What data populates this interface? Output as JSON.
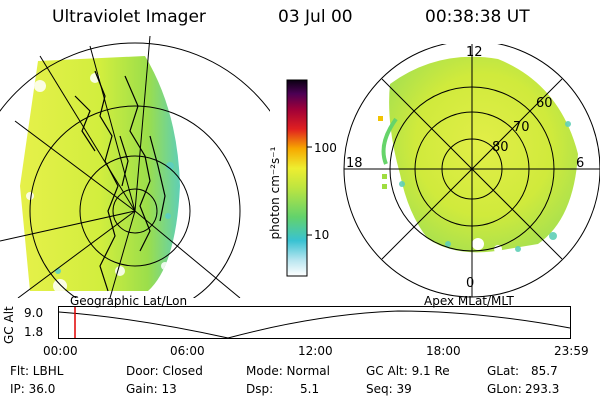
{
  "header": {
    "title": "Ultraviolet Imager",
    "date": "03 Jul 00",
    "time": "00:38:38 UT"
  },
  "colorbar": {
    "unit_label": "photon cm⁻²s⁻¹",
    "ticks": [
      "100",
      "10"
    ]
  },
  "left_image": {
    "label": "Geographic Lat/Lon"
  },
  "right_image": {
    "label": "Apex MLat/MLT",
    "mlt_labels": {
      "top": "12",
      "left": "18",
      "right": "6",
      "bottom": "0"
    },
    "lat_labels": [
      "60",
      "70",
      "80"
    ]
  },
  "altitude_plot": {
    "ylabel": "GC Alt",
    "yticks": [
      "9.0",
      "1.8"
    ],
    "xticks": [
      "00:00",
      "06:00",
      "12:00",
      "18:00",
      "23:59"
    ],
    "marker_color": "#e00000"
  },
  "footer": {
    "flt": "Flt: LBHL",
    "door": "Door: Closed",
    "mode": "Mode: Normal",
    "gc_alt": "GC Alt: 9.1 Re",
    "glat": "GLat:",
    "glat_val": "85.7",
    "ip": "IP: 36.0",
    "gain": "Gain: 13",
    "dsp": "Dsp:",
    "dsp_val": "5.1",
    "seq": "Seq: 39",
    "glon": "GLon:",
    "glon_val": "293.3"
  }
}
